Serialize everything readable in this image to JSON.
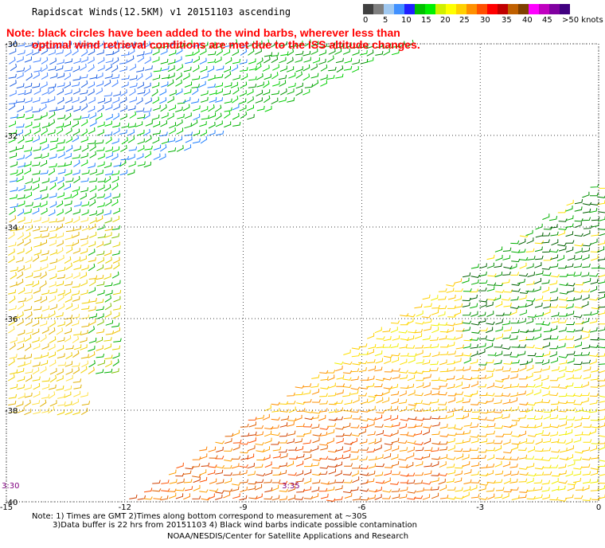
{
  "title": "Rapidscat Winds(12.5KM) v1 20151103 ascending",
  "note_line1": "Note: black circles have been added to the wind barbs, wherever less than",
  "note_line2": "optimal wind retrieval conditions are met due to the ISS altitude changes.",
  "colorbar": {
    "labels": [
      "0",
      "5",
      "10",
      "15",
      "20",
      "25",
      "30",
      "35",
      "40",
      "45",
      ">50 knots"
    ],
    "colors": [
      "#404040",
      "#808080",
      "#a0c8f0",
      "#4090ff",
      "#2020ff",
      "#00c000",
      "#00f000",
      "#d0f000",
      "#ffff00",
      "#ffd000",
      "#ff9000",
      "#ff5000",
      "#ff0000",
      "#c00000",
      "#c06000",
      "#804000",
      "#ff00ff",
      "#c000c0",
      "#8000a0",
      "#400080"
    ]
  },
  "map": {
    "lon_ticks": [
      -15,
      -12,
      -9,
      -6,
      -3,
      0
    ],
    "lat_ticks": [
      -30,
      -32,
      -34,
      -36,
      -38,
      -40
    ],
    "time_labels": [
      {
        "text": "3:30",
        "lon": -15,
        "lat": -39.7
      },
      {
        "text": "3:35",
        "lon": -7.9,
        "lat": -39.7
      }
    ]
  },
  "footer": {
    "line1": "Note: 1) Times are GMT 2)Times along bottom correspond to measurement at ~30S",
    "line2": "3)Data buffer is 22 hrs from 20151103 4) Black wind barbs indicate possible contamination",
    "credit": "NOAA/NESDIS/Center for Satellite Applications and Research"
  }
}
